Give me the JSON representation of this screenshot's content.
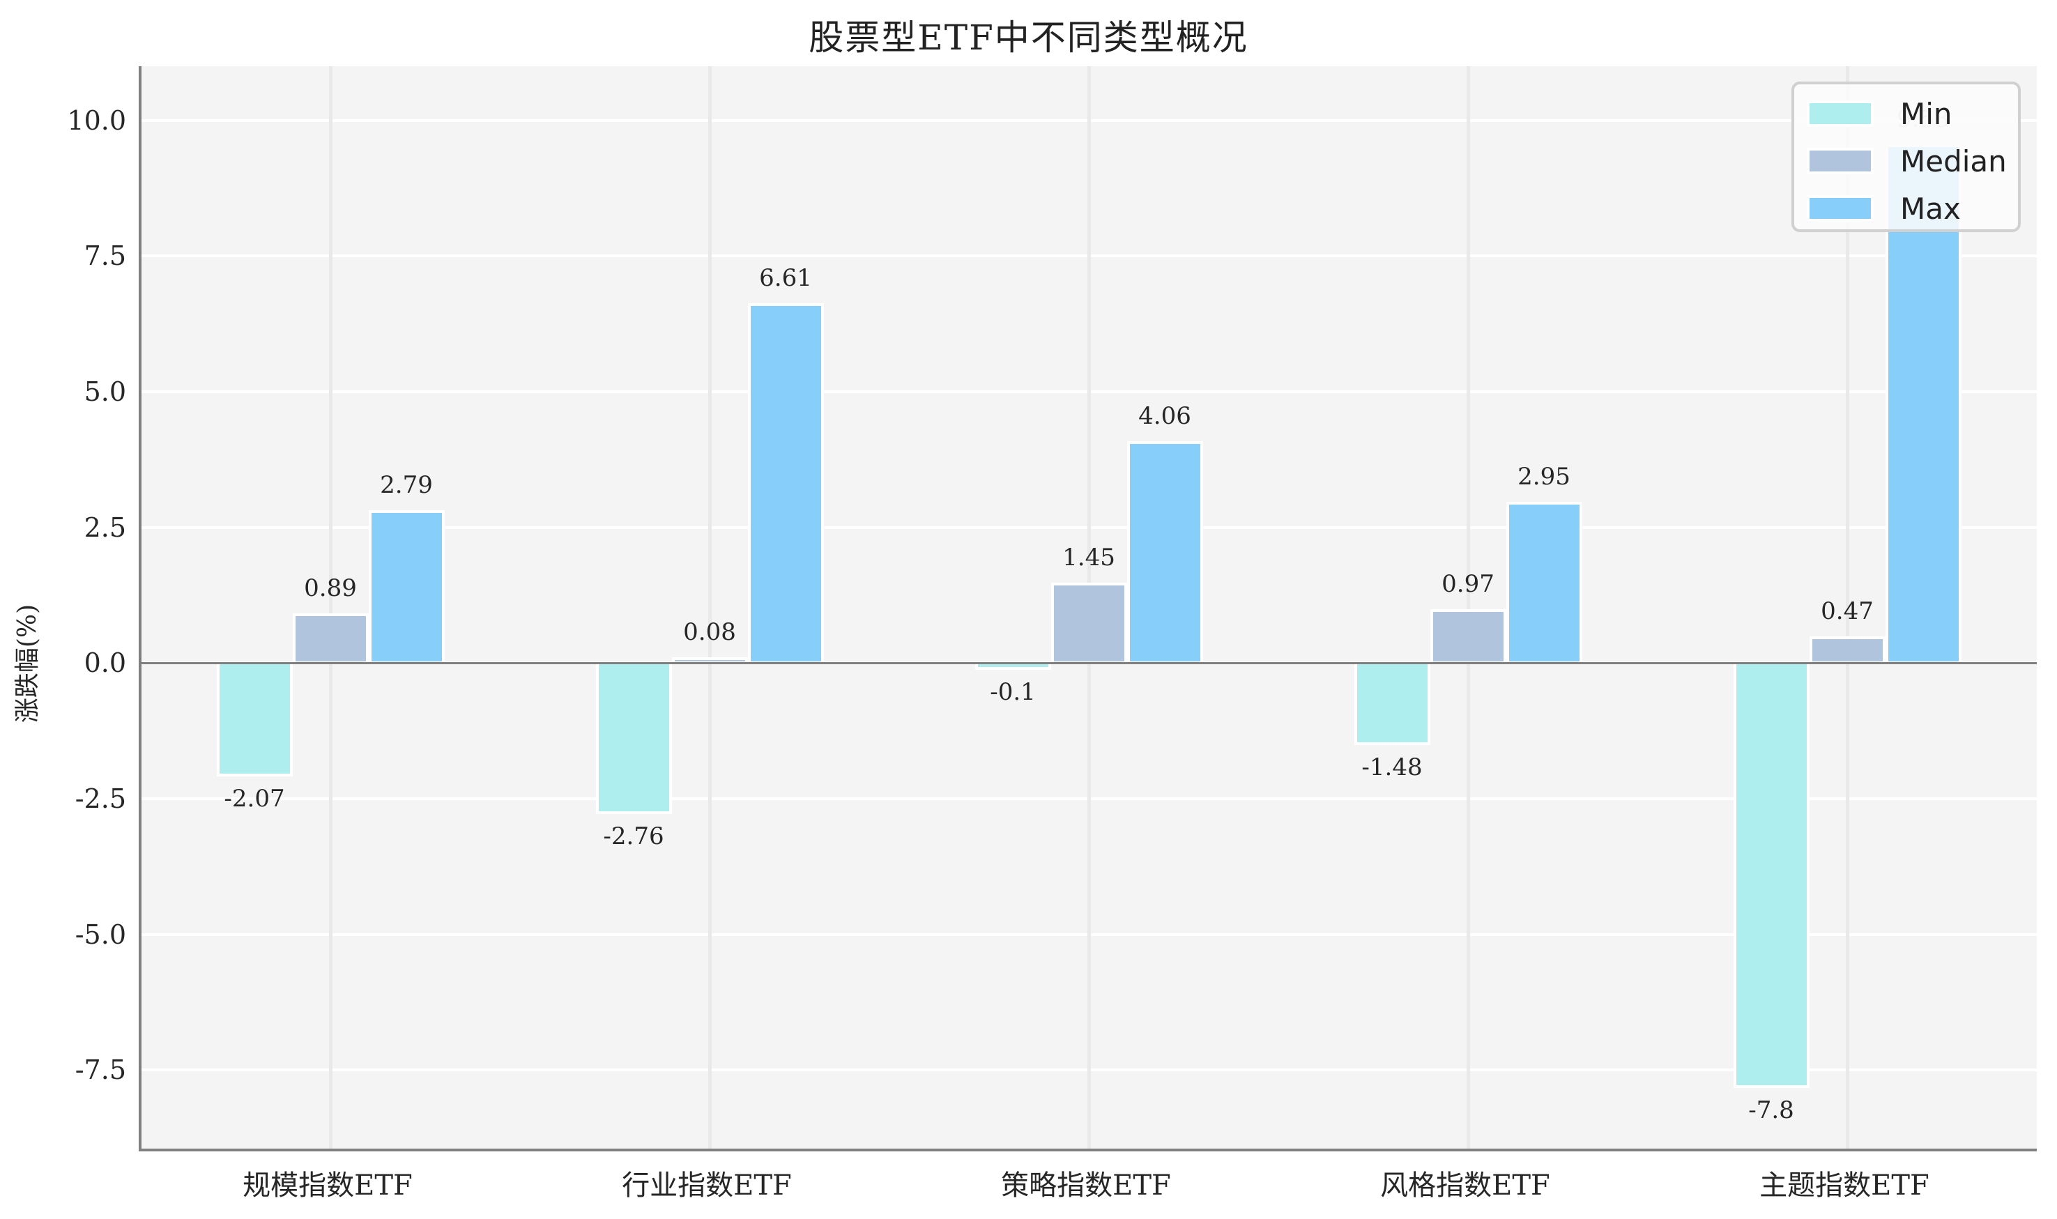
{
  "chart_data": {
    "type": "bar",
    "title": "股票型ETF中不同类型概况",
    "xlabel": "",
    "ylabel": "涨跌幅(%)",
    "ylim": [
      -9.0,
      11.0
    ],
    "yticks": [
      -7.5,
      -5.0,
      -2.5,
      0.0,
      2.5,
      5.0,
      7.5,
      10.0
    ],
    "ytick_labels": [
      "-7.5",
      "-5.0",
      "-2.5",
      "0.0",
      "2.5",
      "5.0",
      "7.5",
      "10.0"
    ],
    "categories": [
      "规模指数ETF",
      "行业指数ETF",
      "策略指数ETF",
      "风格指数ETF",
      "主题指数ETF"
    ],
    "series": [
      {
        "name": "Min",
        "color": "#afeeee",
        "values": [
          -2.07,
          -2.76,
          -0.1,
          -1.48,
          -7.8
        ],
        "labels": [
          "-2.07",
          "-2.76",
          "-0.1",
          "-1.48",
          "-7.8"
        ]
      },
      {
        "name": "Median",
        "color": "#b0c4de",
        "values": [
          0.89,
          0.08,
          1.45,
          0.97,
          0.47
        ],
        "labels": [
          "0.89",
          "0.08",
          "1.45",
          "0.97",
          "0.47"
        ]
      },
      {
        "name": "Max",
        "color": "#87cefa",
        "values": [
          2.79,
          6.61,
          4.06,
          2.95,
          9.53
        ],
        "labels": [
          "2.79",
          "6.61",
          "4.06",
          "2.95",
          "9.53"
        ]
      }
    ],
    "grid": true,
    "legend_position": "upper right",
    "annotations": "value labels above positive bars and below negative bars"
  },
  "legend": {
    "items": [
      {
        "label": "Min",
        "color": "#afeeee"
      },
      {
        "label": "Median",
        "color": "#b0c4de"
      },
      {
        "label": "Max",
        "color": "#87cefa"
      }
    ]
  }
}
